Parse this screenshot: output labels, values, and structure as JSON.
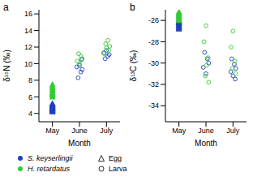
{
  "chart_data": [
    {
      "type": "scatter",
      "title": "a",
      "x_label": "Month",
      "y_label": "δ¹⁵N (‰)",
      "xlim": [
        0.5,
        3.5
      ],
      "xticks": [
        {
          "value": 1,
          "label": "May"
        },
        {
          "value": 2,
          "label": "June"
        },
        {
          "value": 3,
          "label": "July"
        }
      ],
      "ylim": [
        3,
        16.5
      ],
      "yticks": [
        4,
        6,
        8,
        10,
        12,
        14,
        16
      ],
      "series": [
        {
          "species": "S. keyserlingii",
          "stage": "Egg",
          "x": [
            1,
            1,
            1,
            1,
            1,
            1,
            1,
            1,
            1,
            1,
            1,
            1
          ],
          "values": [
            4.2,
            4.4,
            4.5,
            4.6,
            4.7,
            4.8,
            4.9,
            5.0,
            5.1,
            5.2,
            4.3,
            4.6
          ]
        },
        {
          "species": "H. retardatus",
          "stage": "Egg",
          "x": [
            1,
            1,
            1,
            1,
            1,
            1,
            1,
            1,
            1,
            1
          ],
          "values": [
            6.0,
            6.2,
            6.4,
            6.5,
            6.7,
            6.9,
            7.1,
            7.3,
            7.5,
            6.3
          ]
        },
        {
          "species": "S. keyserlingii",
          "stage": "Larva",
          "x": [
            1.95,
            2.05,
            2.1,
            1.9,
            2.0,
            2.08,
            2.95,
            3.05,
            3.1,
            2.9,
            3.0
          ],
          "values": [
            8.3,
            9.0,
            9.3,
            9.6,
            9.8,
            10.5,
            10.6,
            10.9,
            11.1,
            11.3,
            11.6
          ]
        },
        {
          "species": "H. retardatus",
          "stage": "Larva",
          "x": [
            2.0,
            1.92,
            2.1,
            2.05,
            1.97,
            2.92,
            3.08,
            3.0,
            3.12,
            2.97,
            3.05
          ],
          "values": [
            10.0,
            10.3,
            10.6,
            10.9,
            11.2,
            11.2,
            11.6,
            11.9,
            12.1,
            12.4,
            12.8
          ]
        }
      ]
    },
    {
      "type": "scatter",
      "title": "b",
      "x_label": "Month",
      "y_label": "δ¹³C (‰)",
      "xlim": [
        0.5,
        3.5
      ],
      "xticks": [
        {
          "value": 1,
          "label": "May"
        },
        {
          "value": 2,
          "label": "June"
        },
        {
          "value": 3,
          "label": "July"
        }
      ],
      "ylim": [
        -35.5,
        -25
      ],
      "yticks": [
        -34,
        -32,
        -30,
        -28,
        -26
      ],
      "series": [
        {
          "species": "S. keyserlingii",
          "stage": "Egg",
          "x": [
            1,
            1,
            1,
            1,
            1,
            1,
            1,
            1,
            1,
            1
          ],
          "values": [
            -26.0,
            -26.1,
            -26.2,
            -26.3,
            -26.4,
            -26.5,
            -26.6,
            -26.7,
            -26.8,
            -26.2
          ]
        },
        {
          "species": "H. retardatus",
          "stage": "Egg",
          "x": [
            1,
            1,
            1,
            1,
            1,
            1,
            1,
            1,
            1
          ],
          "values": [
            -25.2,
            -25.3,
            -25.4,
            -25.5,
            -25.6,
            -25.7,
            -25.8,
            -25.9,
            -26.0
          ]
        },
        {
          "species": "S. keyserlingii",
          "stage": "Larva",
          "x": [
            1.95,
            2.05,
            2.1,
            1.9,
            2.0,
            2.95,
            3.05,
            3.1,
            2.92,
            3.0,
            3.08
          ],
          "values": [
            -29.0,
            -29.6,
            -30.0,
            -30.4,
            -31.0,
            -29.6,
            -30.1,
            -30.5,
            -30.8,
            -31.2,
            -31.5
          ]
        },
        {
          "species": "H. retardatus",
          "stage": "Larva",
          "x": [
            2.0,
            1.93,
            2.08,
            2.02,
            1.97,
            2.1,
            3.0,
            2.93,
            3.07,
            2.98,
            3.1
          ],
          "values": [
            -26.5,
            -28.0,
            -29.5,
            -30.2,
            -31.2,
            -31.8,
            -27.0,
            -28.5,
            -29.8,
            -30.5,
            -31.0
          ]
        }
      ]
    }
  ],
  "legend": {
    "species": [
      {
        "name": "S. keyserlingii",
        "color": "#1f3fbf"
      },
      {
        "name": "H. retardatus",
        "color": "#33cc33"
      }
    ],
    "stages": [
      {
        "name": "Egg",
        "marker": "triangle"
      },
      {
        "name": "Larva",
        "marker": "circle"
      }
    ]
  }
}
